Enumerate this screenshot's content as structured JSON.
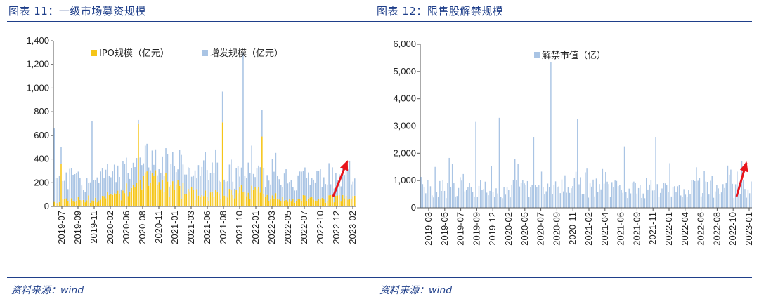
{
  "charts": [
    {
      "figure_title": "图表 11：一级市场募资规模",
      "source": "资料来源：wind",
      "chart_data": {
        "type": "bar",
        "stacked": true,
        "ylim": [
          0,
          1400
        ],
        "yticks": [
          0,
          200,
          400,
          600,
          800,
          1000,
          1200,
          1400
        ],
        "ytick_labels": [
          "0",
          "200",
          "400",
          "600",
          "800",
          "1,000",
          "1,200",
          "1,400"
        ],
        "xtick_labels": [
          "2019-07",
          "2019-09",
          "2019-11",
          "2020-02",
          "2020-06",
          "2020-08",
          "2020-11",
          "2021-01",
          "2021-03",
          "2021-06",
          "2021-08",
          "2021-10",
          "2022-01",
          "2022-03",
          "2022-05",
          "2022-07",
          "2022-10",
          "2022-12",
          "2023-02"
        ],
        "legend_position": "top",
        "series": [
          {
            "name": "IPO规模（亿元）",
            "color": "#f5c518",
            "values": []
          },
          {
            "name": "增发规模（亿元）",
            "color": "#a9c4e4",
            "values": []
          }
        ],
        "bar_count": 176,
        "annotation": "red-arrow-up"
      }
    },
    {
      "figure_title": "图表 12：限售股解禁规模",
      "source": "资料来源：wind",
      "chart_data": {
        "type": "bar",
        "ylim": [
          0,
          6000
        ],
        "yticks": [
          0,
          1000,
          2000,
          3000,
          4000,
          5000,
          6000
        ],
        "ytick_labels": [
          "0",
          "1,000",
          "2,000",
          "3,000",
          "4,000",
          "5,000",
          "6,000"
        ],
        "xtick_labels": [
          "2019-03",
          "2019-05",
          "2019-07",
          "2019-09",
          "2019-12",
          "2020-02",
          "2020-05",
          "2020-07",
          "2020-09",
          "2020-11",
          "2021-02",
          "2021-04",
          "2021-06",
          "2021-09",
          "2021-11",
          "2022-01",
          "2022-04",
          "2022-06",
          "2022-08",
          "2022-10",
          "2023-01"
        ],
        "legend_position": "top",
        "series": [
          {
            "name": "解禁市值（亿）",
            "color": "#a9c4e4",
            "values": []
          }
        ],
        "bar_count": 212,
        "annotation": "red-arrow-up"
      }
    }
  ]
}
